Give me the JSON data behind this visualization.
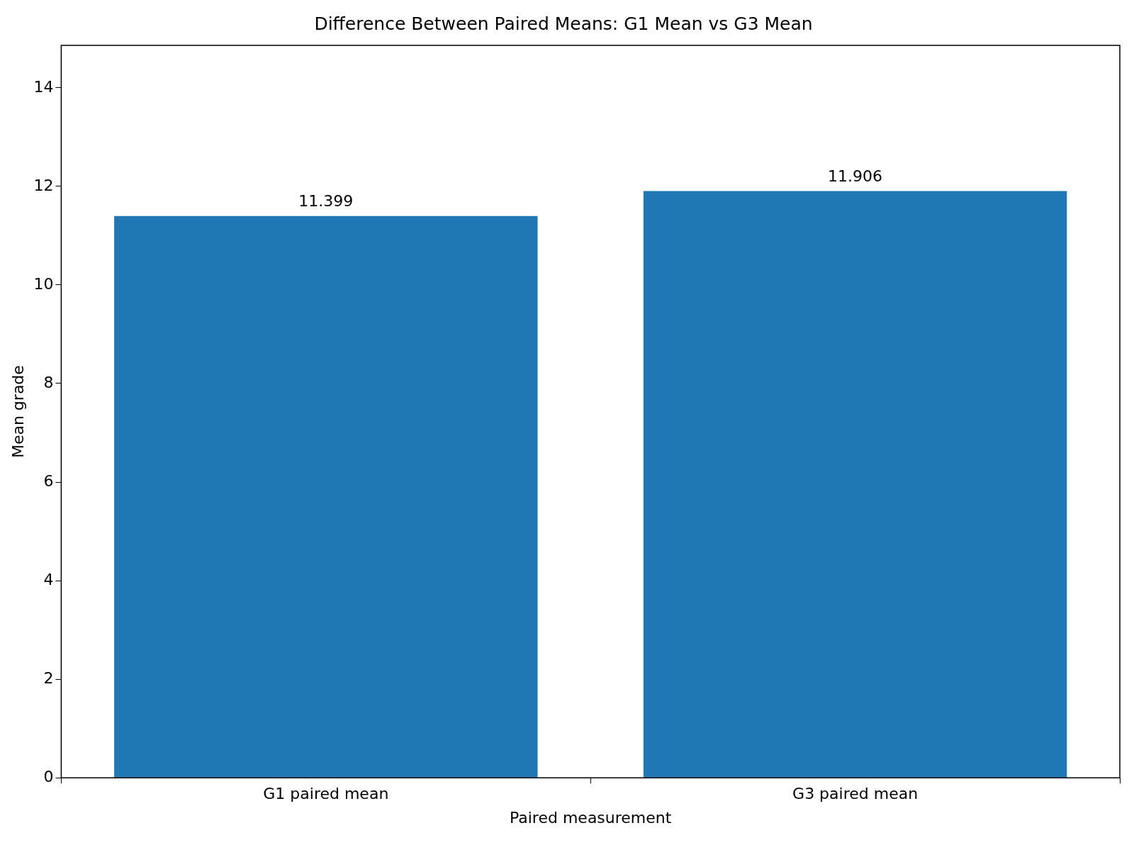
{
  "chart_data": {
    "type": "bar",
    "title": "Difference Between Paired Means: G1 Mean vs G3 Mean",
    "xlabel": "Paired measurement",
    "ylabel": "Mean grade",
    "categories": [
      "G1 paired mean",
      "G3 paired mean"
    ],
    "values": [
      11.399,
      11.906
    ],
    "color": "#1f77b4",
    "ylim": [
      0,
      14.86
    ],
    "yticks": [
      0,
      2,
      4,
      6,
      8,
      10,
      12,
      14
    ],
    "data_labels": true
  }
}
